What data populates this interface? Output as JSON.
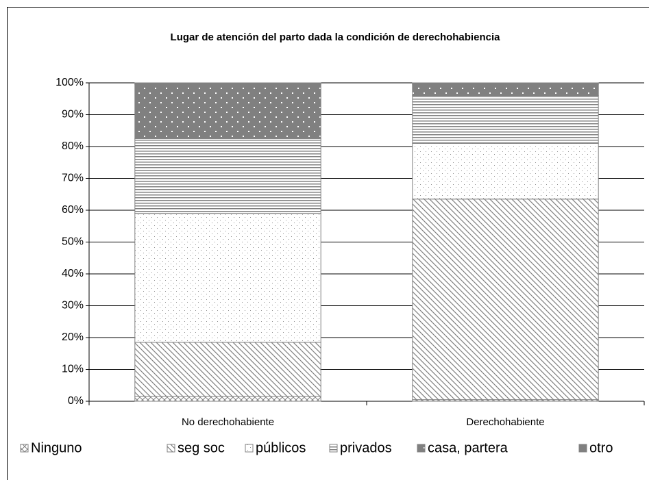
{
  "chart_data": {
    "type": "stacked_bar",
    "title": "Lugar de atención del parto dada la condición de derechohabiencia",
    "categories": [
      "No derechohabiente",
      "Derechohabiente"
    ],
    "series": [
      {
        "name": "Ninguno",
        "color": "#808080",
        "pattern": "crosshatch",
        "values": [
          1.5,
          0.5
        ]
      },
      {
        "name": "seg soc",
        "color": "#808080",
        "pattern": "diagonal",
        "values": [
          17,
          63
        ]
      },
      {
        "name": "públicos",
        "color": "#909090",
        "pattern": "dots",
        "values": [
          40.5,
          17.5
        ]
      },
      {
        "name": "privados",
        "color": "#808080",
        "pattern": "horizontal",
        "values": [
          23.5,
          15
        ]
      },
      {
        "name": "casa, partera",
        "color": "#808080",
        "pattern": "dots-dark",
        "values": [
          17,
          3.5
        ]
      },
      {
        "name": "otro",
        "color": "#808080",
        "pattern": "solid",
        "values": [
          0.5,
          0.5
        ]
      }
    ],
    "ylim": [
      0,
      100
    ],
    "yticks": [
      {
        "value": 0,
        "label": "0%"
      },
      {
        "value": 10,
        "label": "10%"
      },
      {
        "value": 20,
        "label": "20%"
      },
      {
        "value": 30,
        "label": "30%"
      },
      {
        "value": 40,
        "label": "40%"
      },
      {
        "value": 50,
        "label": "50%"
      },
      {
        "value": 60,
        "label": "60%"
      },
      {
        "value": 70,
        "label": "70%"
      },
      {
        "value": 80,
        "label": "80%"
      },
      {
        "value": 90,
        "label": "90%"
      },
      {
        "value": 100,
        "label": "100%"
      }
    ],
    "grid": true
  }
}
